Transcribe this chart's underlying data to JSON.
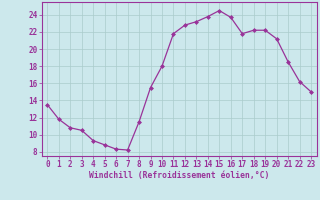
{
  "x": [
    0,
    1,
    2,
    3,
    4,
    5,
    6,
    7,
    8,
    9,
    10,
    11,
    12,
    13,
    14,
    15,
    16,
    17,
    18,
    19,
    20,
    21,
    22,
    23
  ],
  "y": [
    13.5,
    11.8,
    10.8,
    10.5,
    9.3,
    8.8,
    8.3,
    8.2,
    11.5,
    15.5,
    18.0,
    21.8,
    22.8,
    23.2,
    23.8,
    24.5,
    23.7,
    21.8,
    22.2,
    22.2,
    21.2,
    18.5,
    16.2,
    15.0
  ],
  "line_color": "#993399",
  "marker": "D",
  "marker_size": 2.0,
  "bg_color": "#cce8ec",
  "grid_color": "#aacccc",
  "xlabel": "Windchill (Refroidissement éolien,°C)",
  "xlabel_color": "#993399",
  "tick_color": "#993399",
  "ylim": [
    7.5,
    25.5
  ],
  "xlim": [
    -0.5,
    23.5
  ],
  "yticks": [
    8,
    10,
    12,
    14,
    16,
    18,
    20,
    22,
    24
  ],
  "xticks": [
    0,
    1,
    2,
    3,
    4,
    5,
    6,
    7,
    8,
    9,
    10,
    11,
    12,
    13,
    14,
    15,
    16,
    17,
    18,
    19,
    20,
    21,
    22,
    23
  ],
  "tick_fontsize": 5.5,
  "xlabel_fontsize": 5.8
}
